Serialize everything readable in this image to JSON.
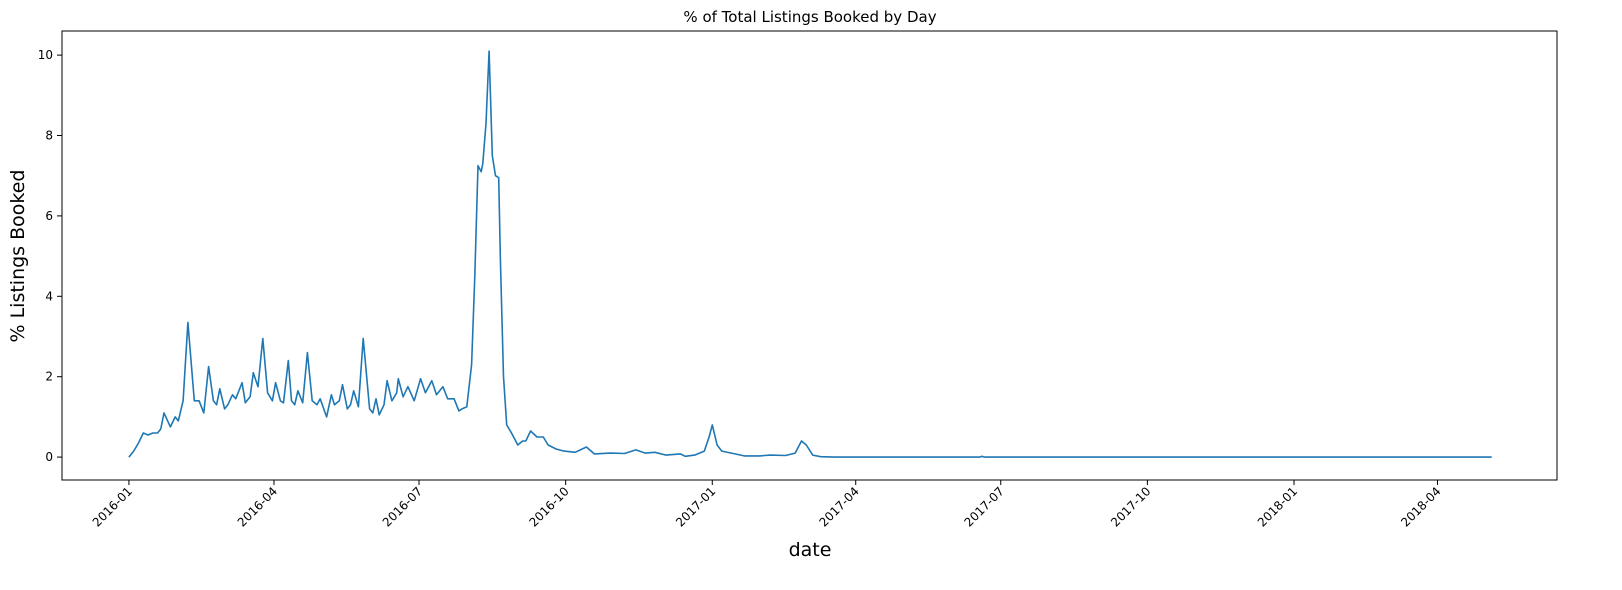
{
  "chart_data": {
    "type": "line",
    "title": "% of Total Listings Booked by Day",
    "x_label": "date",
    "y_label": "% Listings Booked",
    "x": [
      0,
      3,
      6,
      9,
      12,
      15,
      18,
      20,
      22,
      26,
      29,
      31,
      34,
      37,
      41,
      44,
      47,
      50,
      53,
      55,
      57,
      60,
      62,
      65,
      67,
      71,
      73,
      76,
      78,
      81,
      84,
      87,
      90,
      92,
      95,
      97,
      100,
      102,
      104,
      106,
      109,
      112,
      115,
      118,
      120,
      124,
      127,
      129,
      132,
      134,
      137,
      139,
      141,
      144,
      147,
      151,
      153,
      155,
      157,
      160,
      162,
      165,
      168,
      169,
      172,
      175,
      179,
      183,
      186,
      190,
      193,
      197,
      200,
      204,
      207,
      209,
      212,
      215,
      217,
      219,
      221,
      222,
      224,
      226,
      228,
      230,
      232,
      233,
      235,
      237,
      240,
      244,
      247,
      249,
      252,
      256,
      260,
      263,
      268,
      273,
      280,
      287,
      292,
      302,
      311,
      318,
      324,
      330,
      337,
      346,
      349,
      355,
      361,
      364,
      366,
      369,
      372,
      378,
      386,
      396,
      402,
      412,
      418,
      422,
      425,
      429,
      434,
      443,
      534,
      535,
      537,
      855
    ],
    "series": [
      {
        "name": "% Listings Booked",
        "color": "#1f77b4",
        "values": [
          0,
          0.15,
          0.35,
          0.6,
          0.55,
          0.6,
          0.6,
          0.7,
          1.1,
          0.75,
          1.0,
          0.9,
          1.4,
          3.35,
          1.4,
          1.4,
          1.1,
          2.25,
          1.4,
          1.3,
          1.7,
          1.2,
          1.3,
          1.55,
          1.45,
          1.85,
          1.35,
          1.5,
          2.1,
          1.75,
          2.95,
          1.6,
          1.4,
          1.85,
          1.4,
          1.35,
          2.4,
          1.4,
          1.3,
          1.65,
          1.35,
          2.6,
          1.4,
          1.3,
          1.45,
          1.0,
          1.55,
          1.3,
          1.4,
          1.8,
          1.2,
          1.3,
          1.65,
          1.25,
          2.95,
          1.2,
          1.1,
          1.45,
          1.05,
          1.3,
          1.9,
          1.4,
          1.6,
          1.95,
          1.5,
          1.75,
          1.4,
          1.95,
          1.6,
          1.9,
          1.55,
          1.75,
          1.45,
          1.45,
          1.15,
          1.2,
          1.25,
          2.3,
          4.5,
          7.25,
          7.1,
          7.3,
          8.3,
          10.1,
          7.5,
          7.0,
          6.95,
          5.0,
          2.0,
          0.8,
          0.6,
          0.3,
          0.4,
          0.4,
          0.65,
          0.5,
          0.5,
          0.3,
          0.2,
          0.15,
          0.12,
          0.25,
          0.08,
          0.1,
          0.09,
          0.18,
          0.1,
          0.12,
          0.05,
          0.08,
          0.02,
          0.05,
          0.15,
          0.5,
          0.8,
          0.3,
          0.15,
          0.1,
          0.03,
          0.03,
          0.05,
          0.04,
          0.1,
          0.4,
          0.3,
          0.05,
          0.01,
          0,
          0,
          0.02,
          0,
          0
        ]
      }
    ],
    "xlim": [
      -42,
      896
    ],
    "xticks": [
      {
        "value": 0,
        "label": "2016-01"
      },
      {
        "value": 91,
        "label": "2016-04"
      },
      {
        "value": 182,
        "label": "2016-07"
      },
      {
        "value": 274,
        "label": "2016-10"
      },
      {
        "value": 366,
        "label": "2017-01"
      },
      {
        "value": 456,
        "label": "2017-04"
      },
      {
        "value": 547,
        "label": "2017-07"
      },
      {
        "value": 639,
        "label": "2017-10"
      },
      {
        "value": 731,
        "label": "2018-01"
      },
      {
        "value": 821,
        "label": "2018-04"
      }
    ],
    "ylim": [
      -0.57,
      10.6
    ],
    "yticks": [
      0,
      2,
      4,
      6,
      8,
      10
    ]
  }
}
